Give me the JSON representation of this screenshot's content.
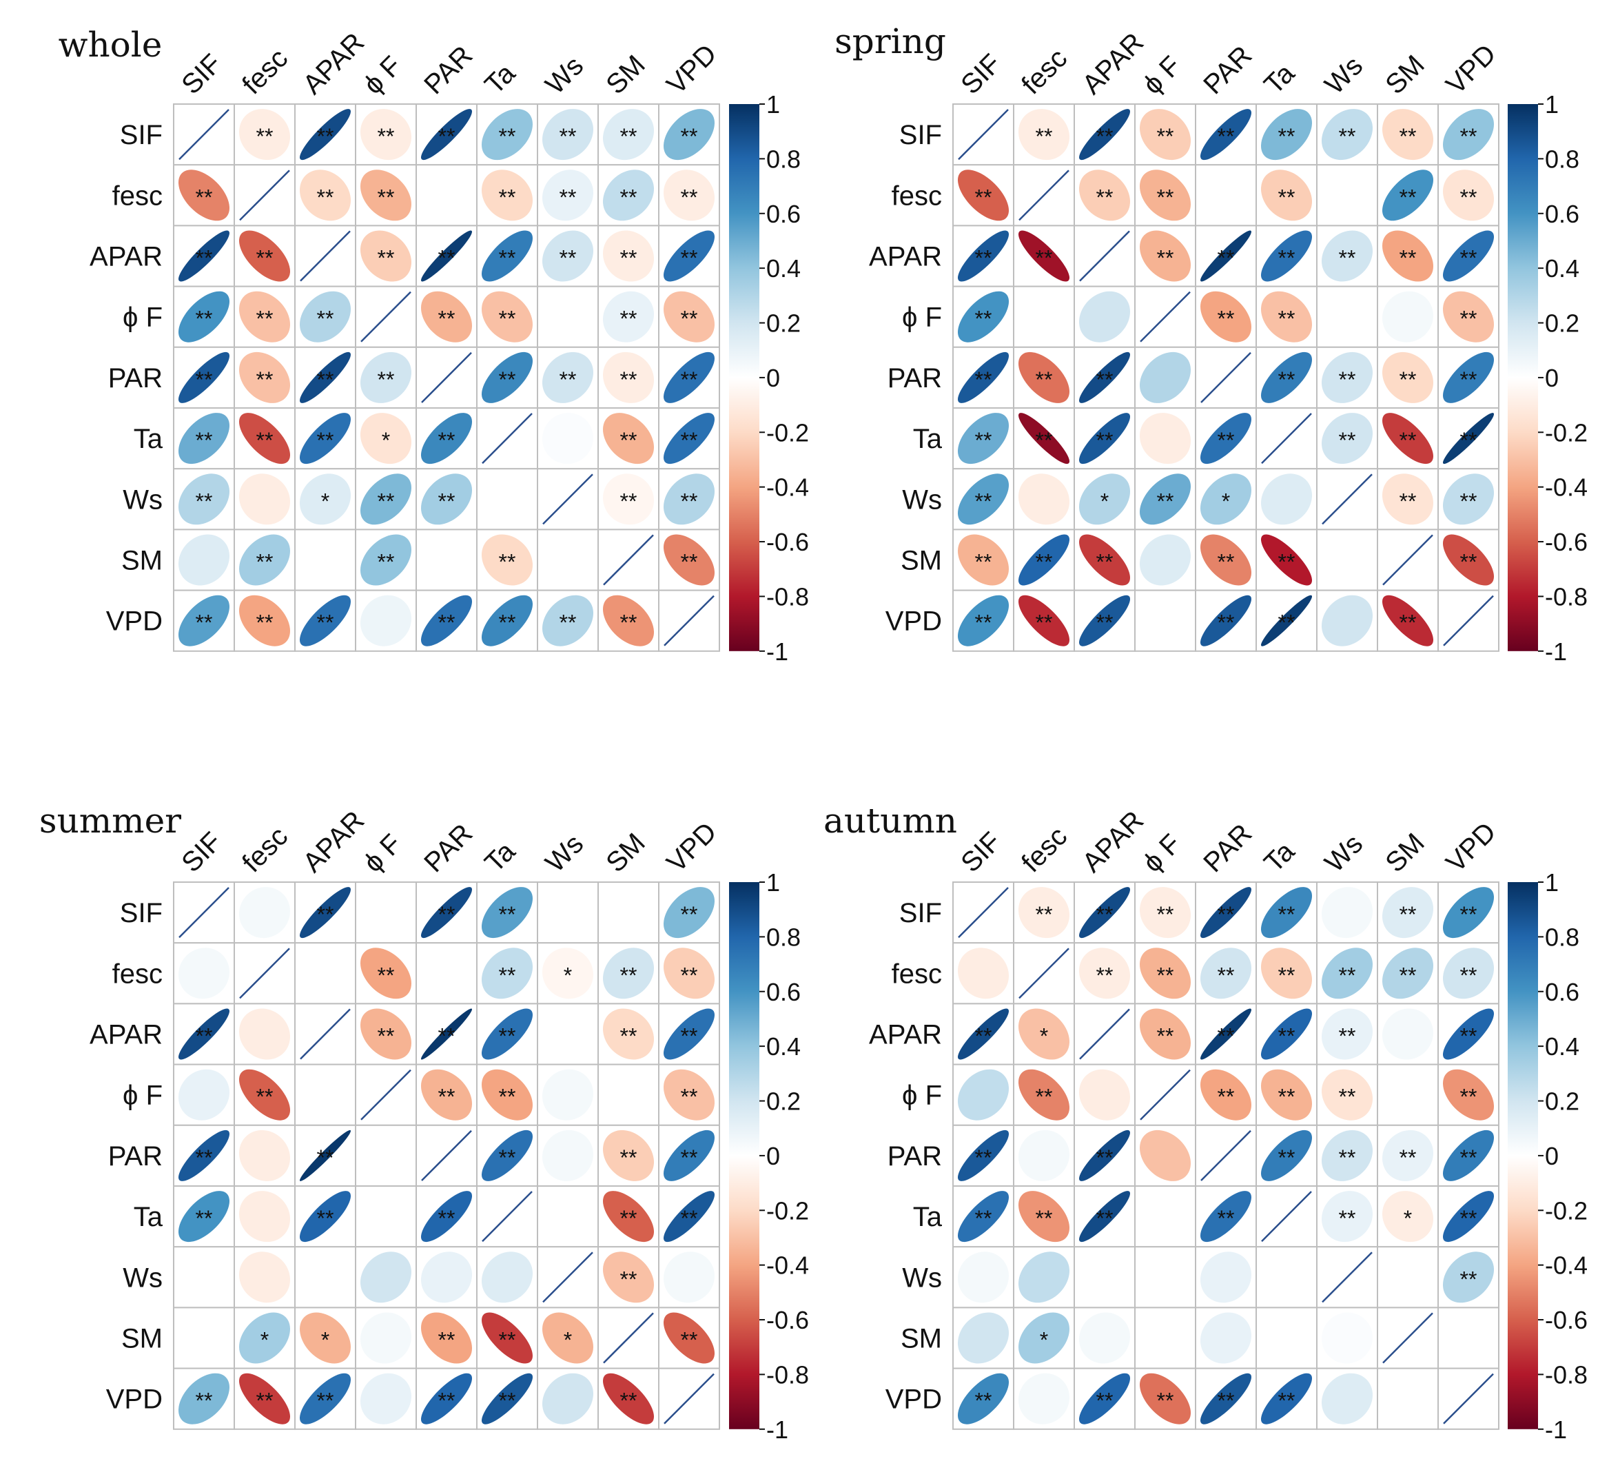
{
  "figure": {
    "description_hidden": false
  },
  "colors": {
    "scale": [
      "#67001F",
      "#B2182B",
      "#D6604D",
      "#F4A582",
      "#FDDBC7",
      "#FFFFFF",
      "#D1E5F0",
      "#92C5DE",
      "#4393C3",
      "#2166AC",
      "#053061"
    ],
    "grid": "#BEBEBE",
    "diag_line": "#2A4E8C",
    "text": "#111111"
  },
  "chart_data": [
    {
      "type": "heatmap",
      "title": "whole",
      "variables": [
        "SIF",
        "fesc",
        "APAR",
        "ϕ F",
        "PAR",
        "Ta",
        "Ws",
        "SM",
        "VPD"
      ],
      "colorbar_ticks": [
        "1",
        "0.8",
        "0.6",
        "0.4",
        "0.2",
        "0",
        "-0.2",
        "-0.4",
        "-0.6",
        "-0.8",
        "-1"
      ],
      "colorbar_values": [
        1,
        0.8,
        0.6,
        0.4,
        0.2,
        0,
        -0.2,
        -0.4,
        -0.6,
        -0.8,
        -1
      ],
      "matrix": [
        [
          1,
          -0.1,
          0.9,
          -0.1,
          0.9,
          0.4,
          0.2,
          0.15,
          0.45
        ],
        [
          -0.5,
          1,
          -0.2,
          -0.35,
          0,
          -0.2,
          0.1,
          0.25,
          -0.1
        ],
        [
          0.9,
          -0.6,
          1,
          -0.25,
          0.95,
          0.7,
          0.2,
          -0.1,
          0.75
        ],
        [
          0.6,
          -0.3,
          0.3,
          1,
          -0.35,
          -0.3,
          0,
          0.1,
          -0.3
        ],
        [
          0.85,
          -0.3,
          0.9,
          0.2,
          1,
          0.65,
          0.2,
          -0.1,
          0.75
        ],
        [
          0.5,
          -0.65,
          0.75,
          -0.15,
          0.65,
          1,
          0.02,
          -0.35,
          0.75
        ],
        [
          0.3,
          -0.1,
          0.15,
          0.45,
          0.35,
          0,
          1,
          -0.05,
          0.3
        ],
        [
          0.15,
          0.35,
          0,
          0.4,
          0,
          -0.2,
          0,
          1,
          -0.5
        ],
        [
          0.55,
          -0.4,
          0.75,
          0.08,
          0.75,
          0.65,
          0.3,
          -0.45,
          1
        ]
      ],
      "stars": [
        [
          "",
          "**",
          "**",
          "**",
          "**",
          "**",
          "**",
          "**",
          "**"
        ],
        [
          "**",
          "",
          "**",
          "**",
          "",
          "**",
          "**",
          "**",
          "**"
        ],
        [
          "**",
          "**",
          "",
          "**",
          "**",
          "**",
          "**",
          "**",
          "**"
        ],
        [
          "**",
          "**",
          "**",
          "",
          "**",
          "**",
          "",
          "**",
          "**"
        ],
        [
          "**",
          "**",
          "**",
          "**",
          "",
          "**",
          "**",
          "**",
          "**"
        ],
        [
          "**",
          "**",
          "**",
          "*",
          "**",
          "",
          "",
          "**",
          "**"
        ],
        [
          "**",
          "",
          "*",
          "**",
          "**",
          "",
          "",
          "**",
          "**"
        ],
        [
          "",
          "**",
          "",
          "**",
          "",
          "**",
          "",
          "",
          "**"
        ],
        [
          "**",
          "**",
          "**",
          "",
          "**",
          "**",
          "**",
          "**",
          ""
        ]
      ]
    },
    {
      "type": "heatmap",
      "title": "spring",
      "variables": [
        "SIF",
        "fesc",
        "APAR",
        "ϕ F",
        "PAR",
        "Ta",
        "Ws",
        "SM",
        "VPD"
      ],
      "colorbar_ticks": [
        "1",
        "0.8",
        "0.6",
        "0.4",
        "0.2",
        "0",
        "-0.2",
        "-0.4",
        "-0.6",
        "-0.8",
        "-1"
      ],
      "colorbar_values": [
        1,
        0.8,
        0.6,
        0.4,
        0.2,
        0,
        -0.2,
        -0.4,
        -0.6,
        -0.8,
        -1
      ],
      "matrix": [
        [
          1,
          -0.1,
          0.9,
          -0.25,
          0.85,
          0.45,
          0.25,
          -0.2,
          0.4
        ],
        [
          -0.6,
          1,
          -0.25,
          -0.35,
          0,
          -0.25,
          0,
          0.6,
          -0.15
        ],
        [
          0.85,
          -0.85,
          1,
          -0.35,
          0.95,
          0.75,
          0.2,
          -0.4,
          0.75
        ],
        [
          0.6,
          0,
          0.2,
          1,
          -0.4,
          -0.3,
          0,
          0.05,
          -0.3
        ],
        [
          0.85,
          -0.55,
          0.9,
          0.3,
          1,
          0.7,
          0.2,
          -0.2,
          0.7
        ],
        [
          0.5,
          -0.9,
          0.85,
          -0.1,
          0.75,
          1,
          0.2,
          -0.7,
          0.95
        ],
        [
          0.55,
          -0.1,
          0.3,
          0.5,
          0.35,
          0.15,
          1,
          -0.15,
          0.25
        ],
        [
          -0.35,
          0.8,
          -0.7,
          0.15,
          -0.5,
          -0.8,
          0,
          1,
          -0.65
        ],
        [
          0.6,
          -0.75,
          0.85,
          0,
          0.85,
          0.95,
          0.2,
          -0.75,
          1
        ]
      ],
      "stars": [
        [
          "",
          "**",
          "**",
          "**",
          "**",
          "**",
          "**",
          "**",
          "**"
        ],
        [
          "**",
          "",
          "**",
          "**",
          "",
          "**",
          "",
          "**",
          "**"
        ],
        [
          "**",
          "**",
          "",
          "**",
          "**",
          "**",
          "**",
          "**",
          "**"
        ],
        [
          "**",
          "",
          "",
          "",
          "**",
          "**",
          "",
          "",
          "**"
        ],
        [
          "**",
          "**",
          "**",
          "",
          "",
          "**",
          "**",
          "**",
          "**"
        ],
        [
          "**",
          "**",
          "**",
          "",
          "**",
          "",
          "**",
          "**",
          "**"
        ],
        [
          "**",
          "",
          "*",
          "**",
          "*",
          "",
          "",
          "**",
          "**"
        ],
        [
          "**",
          "**",
          "**",
          "",
          "**",
          "**",
          "",
          "",
          "**"
        ],
        [
          "**",
          "**",
          "**",
          "",
          "**",
          "**",
          "",
          "**",
          ""
        ]
      ]
    },
    {
      "type": "heatmap",
      "title": "summer",
      "variables": [
        "SIF",
        "fesc",
        "APAR",
        "ϕ F",
        "PAR",
        "Ta",
        "Ws",
        "SM",
        "VPD"
      ],
      "colorbar_ticks": [
        "1",
        "0.8",
        "0.6",
        "0.4",
        "0.2",
        "0",
        "-0.2",
        "-0.4",
        "-0.6",
        "-0.8",
        "-1"
      ],
      "colorbar_values": [
        1,
        0.8,
        0.6,
        0.4,
        0.2,
        0,
        -0.2,
        -0.4,
        -0.6,
        -0.8,
        -1
      ],
      "matrix": [
        [
          1,
          0.05,
          0.9,
          0,
          0.9,
          0.55,
          0,
          0,
          0.45
        ],
        [
          0.05,
          1,
          0,
          -0.4,
          0,
          0.25,
          -0.05,
          0.2,
          -0.25
        ],
        [
          0.9,
          -0.1,
          1,
          -0.35,
          0.97,
          0.75,
          0,
          -0.2,
          0.75
        ],
        [
          0.1,
          -0.6,
          0,
          1,
          -0.35,
          -0.4,
          0.05,
          0,
          -0.3
        ],
        [
          0.85,
          -0.1,
          0.97,
          0,
          1,
          0.75,
          0.05,
          -0.25,
          0.7
        ],
        [
          0.6,
          -0.1,
          0.8,
          0,
          0.8,
          1,
          0,
          -0.6,
          0.85
        ],
        [
          0,
          -0.1,
          0,
          0.2,
          0.1,
          0.15,
          1,
          -0.3,
          0.05
        ],
        [
          0,
          0.35,
          -0.35,
          0.05,
          -0.4,
          -0.7,
          -0.35,
          1,
          -0.6
        ],
        [
          0.45,
          -0.7,
          0.75,
          0.1,
          0.8,
          0.85,
          0.2,
          -0.7,
          1
        ]
      ],
      "stars": [
        [
          "",
          "",
          "**",
          "",
          "**",
          "**",
          "",
          "",
          "**"
        ],
        [
          "",
          "",
          "",
          "**",
          "",
          "**",
          "*",
          "**",
          "**"
        ],
        [
          "**",
          "",
          "",
          "**",
          "**",
          "**",
          "",
          "**",
          "**"
        ],
        [
          "",
          "**",
          "",
          "",
          "**",
          "**",
          "",
          "",
          "**"
        ],
        [
          "**",
          "",
          "**",
          "",
          "",
          "**",
          "",
          "**",
          "**"
        ],
        [
          "**",
          "",
          "**",
          "",
          "**",
          "",
          "",
          "**",
          "**"
        ],
        [
          "",
          "",
          "",
          "",
          "",
          "",
          "",
          "**",
          ""
        ],
        [
          "",
          "*",
          "*",
          "",
          "**",
          "**",
          "*",
          "",
          "**"
        ],
        [
          "**",
          "**",
          "**",
          "",
          "**",
          "**",
          "",
          "**",
          ""
        ]
      ]
    },
    {
      "type": "heatmap",
      "title": "autumn",
      "variables": [
        "SIF",
        "fesc",
        "APAR",
        "ϕ F",
        "PAR",
        "Ta",
        "Ws",
        "SM",
        "VPD"
      ],
      "colorbar_ticks": [
        "1",
        "0.8",
        "0.6",
        "0.4",
        "0.2",
        "0",
        "-0.2",
        "-0.4",
        "-0.6",
        "-0.8",
        "-1"
      ],
      "colorbar_values": [
        1,
        0.8,
        0.6,
        0.4,
        0.2,
        0,
        -0.2,
        -0.4,
        -0.6,
        -0.8,
        -1
      ],
      "matrix": [
        [
          1,
          -0.1,
          0.9,
          -0.1,
          0.9,
          0.65,
          0.05,
          0.15,
          0.6
        ],
        [
          -0.1,
          1,
          -0.1,
          -0.35,
          0.2,
          -0.25,
          0.35,
          0.3,
          0.2
        ],
        [
          0.9,
          -0.3,
          1,
          -0.35,
          0.95,
          0.8,
          0.1,
          0.05,
          0.8
        ],
        [
          0.25,
          -0.5,
          -0.1,
          1,
          -0.4,
          -0.35,
          -0.15,
          0,
          -0.45
        ],
        [
          0.85,
          0.05,
          0.9,
          -0.3,
          1,
          0.7,
          0.2,
          0.1,
          0.7
        ],
        [
          0.75,
          -0.45,
          0.9,
          0,
          0.75,
          1,
          0.1,
          -0.1,
          0.8
        ],
        [
          0.05,
          0.25,
          0,
          0,
          0.1,
          0,
          1,
          0,
          0.3
        ],
        [
          0.2,
          0.35,
          0.05,
          0,
          0.1,
          0,
          0.02,
          1,
          0
        ],
        [
          0.65,
          0.05,
          0.8,
          -0.55,
          0.85,
          0.8,
          0.15,
          0,
          1
        ]
      ],
      "stars": [
        [
          "",
          "**",
          "**",
          "**",
          "**",
          "**",
          "",
          "**",
          "**"
        ],
        [
          "",
          "",
          "**",
          "**",
          "**",
          "**",
          "**",
          "**",
          "**"
        ],
        [
          "**",
          "*",
          "",
          "**",
          "**",
          "**",
          "**",
          "",
          "**"
        ],
        [
          "",
          "**",
          "",
          "",
          "**",
          "**",
          "**",
          "",
          "**"
        ],
        [
          "**",
          "",
          "**",
          "",
          "",
          "**",
          "**",
          "**",
          "**"
        ],
        [
          "**",
          "**",
          "**",
          "",
          "**",
          "",
          "**",
          "*",
          "**"
        ],
        [
          "",
          "",
          "",
          "",
          "",
          "",
          "",
          "",
          "**"
        ],
        [
          "",
          "*",
          "",
          "",
          "",
          "",
          "",
          "",
          ""
        ],
        [
          "**",
          "",
          "**",
          "**",
          "**",
          "**",
          "",
          "",
          ""
        ]
      ]
    }
  ]
}
